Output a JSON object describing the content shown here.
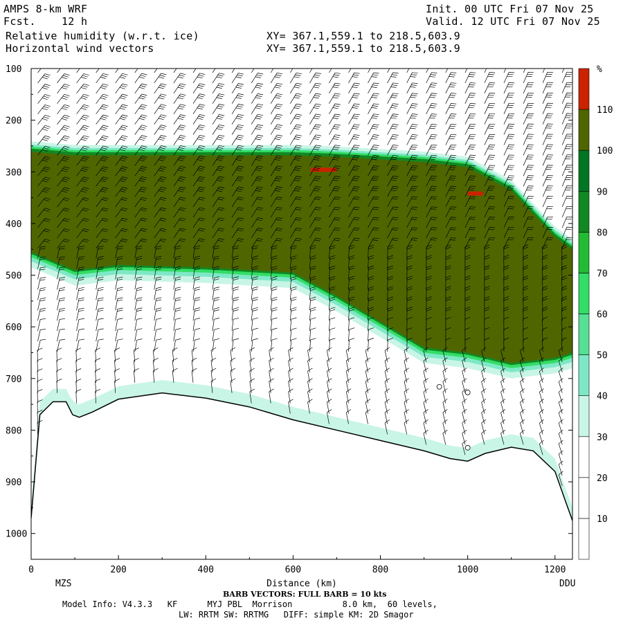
{
  "header": {
    "model": "AMPS 8-km WRF",
    "fcst": "Fcst.    12 h",
    "field1": "Relative humidity (w.r.t. ice)",
    "field2": "Horizontal wind vectors",
    "init": "Init. 00 UTC Fri 07 Nov 25",
    "valid": "Valid. 12 UTC Fri 07 Nov 25",
    "xy1": "XY= 367.1,559.1 to 218.5,603.9",
    "xy2": "XY= 367.1,559.1 to 218.5,603.9"
  },
  "chart_data": {
    "type": "heatmap",
    "xlabel": "Distance (km)",
    "ylabel": "",
    "xlim": [
      0,
      1240
    ],
    "ylim": [
      1050,
      100
    ],
    "x_ticks": [
      0,
      200,
      400,
      600,
      800,
      1000,
      1200
    ],
    "y_ticks": [
      100,
      200,
      300,
      400,
      500,
      600,
      700,
      800,
      900,
      1000
    ],
    "endpoints": {
      "left": "MZS",
      "right": "DDU"
    },
    "colorbar": {
      "unit": "%",
      "levels": [
        10,
        20,
        30,
        40,
        50,
        60,
        70,
        80,
        90,
        100,
        110
      ],
      "colors": [
        "#ffffff",
        "#ffffff",
        "#ffffff",
        "#c8f5e6",
        "#7ee8c6",
        "#55e095",
        "#33dd66",
        "#22bb33",
        "#118822",
        "#007722",
        "#4f6600",
        "#cc2200"
      ]
    },
    "terrain": [
      [
        0,
        970
      ],
      [
        20,
        770
      ],
      [
        50,
        745
      ],
      [
        80,
        745
      ],
      [
        95,
        770
      ],
      [
        110,
        775
      ],
      [
        140,
        765
      ],
      [
        200,
        740
      ],
      [
        300,
        728
      ],
      [
        400,
        738
      ],
      [
        500,
        755
      ],
      [
        600,
        780
      ],
      [
        700,
        800
      ],
      [
        800,
        820
      ],
      [
        900,
        840
      ],
      [
        960,
        855
      ],
      [
        1000,
        860
      ],
      [
        1040,
        845
      ],
      [
        1100,
        833
      ],
      [
        1150,
        840
      ],
      [
        1200,
        880
      ],
      [
        1225,
        940
      ],
      [
        1240,
        975
      ]
    ],
    "humid_band": {
      "x": [
        0,
        100,
        200,
        400,
        600,
        700,
        900,
        1000,
        1100,
        1200,
        1240
      ],
      "top_p": [
        255,
        262,
        262,
        262,
        262,
        265,
        275,
        285,
        330,
        420,
        445
      ],
      "bottom_p": [
        455,
        490,
        480,
        485,
        495,
        540,
        640,
        650,
        670,
        660,
        650
      ]
    },
    "red_patches": [
      {
        "x0": 640,
        "x1": 700,
        "p0": 292,
        "p1": 300
      },
      {
        "x0": 1000,
        "x1": 1035,
        "p0": 338,
        "p1": 346
      }
    ],
    "calm_circles": [
      [
        935,
        716
      ],
      [
        1000,
        727
      ],
      [
        1000,
        834
      ]
    ]
  },
  "footer": {
    "barb_note": "BARB VECTORS: FULL BARB = 10 kts",
    "model_info": "Model Info: V4.3.3   KF      MYJ PBL  Morrison          8.0 km,  60 levels,",
    "physics": "LW: RRTM SW: RRTMG   DIFF: simple KM: 2D Smagor"
  },
  "icons": {
    "barb": "wind-barb-icon",
    "calm": "calm-circle-icon"
  }
}
